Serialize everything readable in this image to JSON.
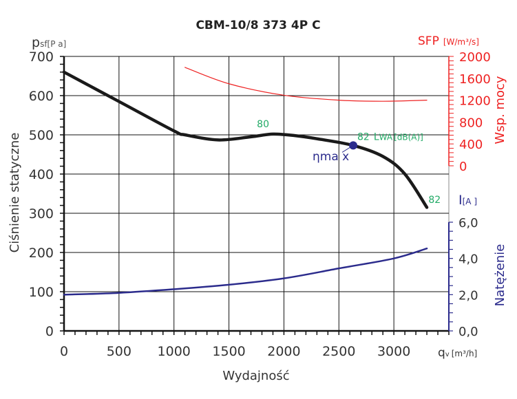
{
  "chart_data": {
    "type": "line",
    "title": "CBM-10/8 373 4P C",
    "xlabel": "Wydajność",
    "x_unit_symbol": "q",
    "x_unit_sub": "v",
    "x_unit": "[m³/h]",
    "xlim": [
      0,
      3500
    ],
    "xticks": [
      0,
      500,
      1000,
      1500,
      2000,
      2500,
      3000
    ],
    "grid": true,
    "axes": {
      "pressure": {
        "label": "Ciśnienie statyczne",
        "symbol": "p",
        "sub": "sf",
        "unit": "[P a]",
        "ylim": [
          0,
          700
        ],
        "ticks": [
          0,
          100,
          200,
          300,
          400,
          500,
          600,
          700
        ],
        "color": "#222222"
      },
      "sfp": {
        "label": "Wsp. mocy",
        "symbol": "SFP",
        "unit": "[W/m³/s]",
        "ylim": [
          0,
          2000
        ],
        "ticks": [
          0,
          400,
          800,
          1200,
          1600,
          2000
        ],
        "color": "#ee2222"
      },
      "current": {
        "label": "Natężenie",
        "symbol": "I",
        "unit": "[A ]",
        "ylim": [
          0,
          6
        ],
        "ticks": [
          "0,0",
          "2,0",
          "4,0",
          "6,0"
        ],
        "color": "#2b2b8c"
      }
    },
    "series": [
      {
        "name": "Ciśnienie statyczne",
        "axis": "pressure",
        "color": "#1a1a1a",
        "x": [
          0,
          500,
          1000,
          1100,
          1400,
          1700,
          1900,
          2100,
          2300,
          2630,
          2900,
          3100,
          3300
        ],
        "y": [
          660,
          585,
          510,
          500,
          487,
          495,
          502,
          498,
          490,
          473,
          445,
          400,
          315
        ]
      },
      {
        "name": "SFP",
        "axis": "sfp",
        "color": "#ee2222",
        "x": [
          1100,
          1500,
          2000,
          2500,
          2900,
          3300
        ],
        "y": [
          1800,
          1500,
          1290,
          1200,
          1180,
          1200
        ]
      },
      {
        "name": "Natężenie",
        "axis": "current",
        "color": "#2b2b8c",
        "x": [
          0,
          500,
          1000,
          1500,
          2000,
          2500,
          3000,
          3300
        ],
        "y": [
          2.0,
          2.1,
          2.3,
          2.55,
          2.9,
          3.45,
          4.0,
          4.55
        ]
      }
    ],
    "annotations": {
      "eta_max": {
        "label": "ηma x",
        "x": 2630,
        "y": 473,
        "color": "#2b2b8c"
      },
      "noise_80": {
        "label": "80",
        "x": 1810,
        "y": 528
      },
      "noise_82a": {
        "label": "82",
        "x": 2720,
        "y": 496
      },
      "lwa_label": {
        "label": "L",
        "sub": "WA",
        "unit": "[dB(A)]"
      },
      "noise_82b": {
        "label": "82",
        "x": 3370,
        "y": 335
      },
      "noise_color": "#22aa66"
    }
  }
}
